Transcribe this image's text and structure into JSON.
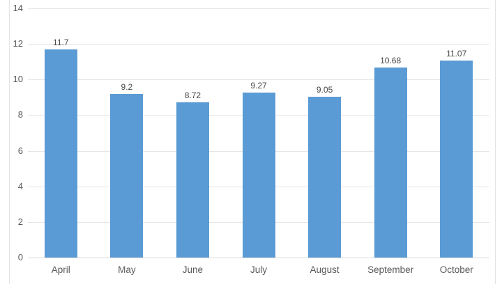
{
  "chart_data": {
    "type": "bar",
    "title": "",
    "xlabel": "",
    "ylabel": "",
    "categories": [
      "April",
      "May",
      "June",
      "July",
      "August",
      "September",
      "October"
    ],
    "values": [
      11.7,
      9.2,
      8.72,
      9.27,
      9.05,
      10.68,
      11.07
    ],
    "data_labels": [
      "11.7",
      "9.2",
      "8.72",
      "9.27",
      "9.05",
      "10.68",
      "11.07"
    ],
    "ylim": [
      0,
      14
    ],
    "yticks": [
      0,
      2,
      4,
      6,
      8,
      10,
      12,
      14
    ],
    "grid": true,
    "legend_position": "none",
    "colors": {
      "bar": "#5B9BD5",
      "gridline": "#E5E5E5",
      "axis_line": "#D8D8D8",
      "frame": "#E3E3E3",
      "tick_label": "#595959",
      "data_label": "#474747",
      "background": "#FFFFFF"
    }
  }
}
